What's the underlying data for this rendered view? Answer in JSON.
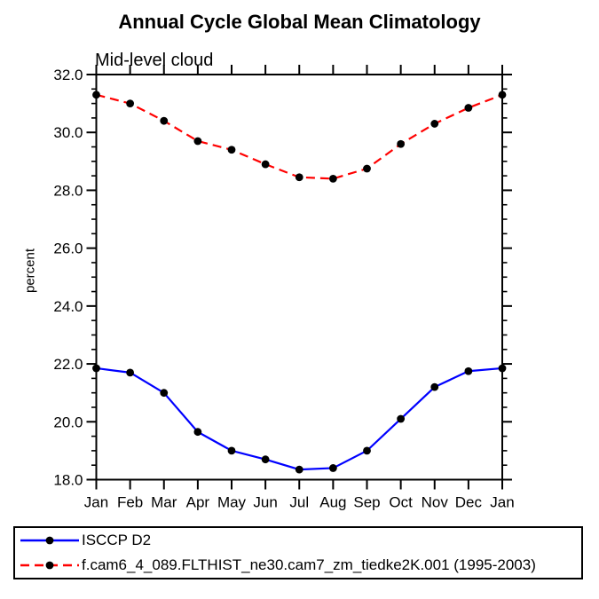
{
  "page": {
    "background": "#ffffff"
  },
  "chart_data": {
    "type": "line",
    "title": "Annual Cycle Global Mean Climatology",
    "subtitle": "Mid-level cloud",
    "ylabel": "percent",
    "xlabel": "",
    "x_categories": [
      "Jan",
      "Feb",
      "Mar",
      "Apr",
      "May",
      "Jun",
      "Jul",
      "Aug",
      "Sep",
      "Oct",
      "Nov",
      "Dec",
      "Jan"
    ],
    "ylim": [
      18.0,
      32.0
    ],
    "ytick_major_step": 2.0,
    "ytick_minor_step": 0.5,
    "ytick_labels": [
      "18.0",
      "20.0",
      "22.0",
      "24.0",
      "26.0",
      "28.0",
      "30.0",
      "32.0"
    ],
    "grid": false,
    "axis_color": "#000000",
    "legend": {
      "position": "bottom-left-box",
      "border_color": "#000000"
    },
    "series": [
      {
        "name": "ISCCP D2",
        "color": "#0000ff",
        "line_style": "solid",
        "marker": "filled-circle",
        "marker_color": "#000000",
        "values": [
          21.85,
          21.7,
          21.0,
          19.65,
          19.0,
          18.7,
          18.35,
          18.4,
          19.0,
          20.1,
          21.2,
          21.75,
          21.85
        ]
      },
      {
        "name": "f.cam6_4_089.FLTHIST_ne30.cam7_zm_tiedke2K.001 (1995-2003)",
        "color": "#ff0000",
        "line_style": "dashed",
        "marker": "filled-circle",
        "marker_color": "#000000",
        "values": [
          31.3,
          31.0,
          30.4,
          29.7,
          29.4,
          28.9,
          28.45,
          28.4,
          28.75,
          29.6,
          30.3,
          30.85,
          31.3
        ]
      }
    ]
  }
}
